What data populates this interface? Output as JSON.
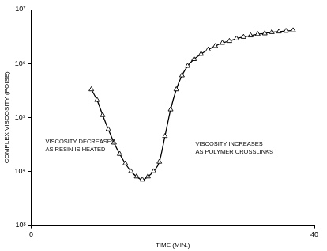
{
  "chart_data": {
    "type": "line",
    "x_label": "TIME (MIN.)",
    "y_label": "COMPLEX VISCOSITY (POISE)",
    "annotations": [
      [
        "VISCOSITY DECREASES",
        "AS RESIN IS HEATED"
      ],
      [
        "VISCOSITY INCREASES",
        "AS POLYMER CROSSLINKS"
      ]
    ],
    "x": [
      8.5,
      9.3,
      10.1,
      10.9,
      11.7,
      12.5,
      13.3,
      14.1,
      14.9,
      15.7,
      16.5,
      17.3,
      18.1,
      18.9,
      19.7,
      20.5,
      21.3,
      22.1,
      23.0,
      24.0,
      25.0,
      26.0,
      27.0,
      28.0,
      29.0,
      30.0,
      31.0,
      32.0,
      33.0,
      34.0,
      35.0,
      36.0,
      37.0
    ],
    "values": [
      330000,
      210000,
      110000,
      60000,
      34000,
      21000,
      14000,
      10000,
      8000,
      7000,
      8000,
      10000,
      15000,
      45000,
      140000,
      330000,
      600000,
      900000,
      1200000,
      1500000,
      1800000,
      2100000,
      2400000,
      2600000,
      2900000,
      3100000,
      3300000,
      3500000,
      3600000,
      3800000,
      3900000,
      4000000,
      4100000
    ],
    "color": "#000000",
    "marker": "triangle",
    "line_style": "solid",
    "log": "y",
    "grid": false,
    "xlim": [
      0,
      40
    ],
    "xticks": [
      0,
      40
    ],
    "ylim": [
      1000,
      10000000
    ],
    "yticks": [
      {
        "value": 1000,
        "label": "10³"
      },
      {
        "value": 10000,
        "label": "10⁴"
      },
      {
        "value": 100000,
        "label": "10⁵"
      },
      {
        "value": 1000000,
        "label": "10⁶"
      },
      {
        "value": 10000000,
        "label": "10⁷"
      }
    ]
  }
}
